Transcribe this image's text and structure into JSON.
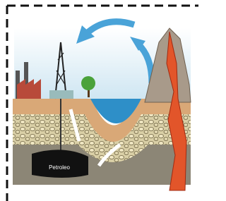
{
  "illustration": {
    "label": "Petroleo"
  }
}
